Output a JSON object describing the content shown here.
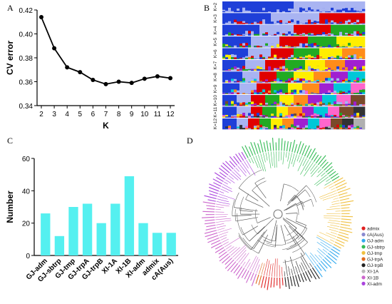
{
  "panel_labels": [
    "A",
    "B",
    "C",
    "D"
  ],
  "chart_data": [
    {
      "type": "line",
      "panel": "A",
      "x": [
        2,
        3,
        4,
        5,
        6,
        7,
        8,
        9,
        10,
        11,
        12
      ],
      "y": [
        0.414,
        0.388,
        0.372,
        0.368,
        0.3615,
        0.358,
        0.36,
        0.359,
        0.3625,
        0.3645,
        0.363
      ],
      "xlabel": "K",
      "ylabel": "CV error",
      "xlim": [
        2,
        12
      ],
      "ylim": [
        0.34,
        0.42
      ],
      "yticks": [
        "0.34",
        "0.36",
        "0.38",
        "0.40",
        "0.42"
      ],
      "xticks": [
        "2",
        "3",
        "4",
        "5",
        "6",
        "7",
        "8",
        "9",
        "10",
        "11",
        "12"
      ],
      "grid": false
    },
    {
      "type": "stacked-bar",
      "panel": "B",
      "rows": [
        "K=2",
        "K=3",
        "K=4",
        "K=5",
        "K=6",
        "K=7",
        "K=8",
        "K=9",
        "K=10",
        "K=11",
        "K=12"
      ],
      "colors": [
        "#1f3fd8",
        "#a9b4f2",
        "#e00000",
        "#22aa22",
        "#ffee00",
        "#ff8c1a",
        "#a020d0",
        "#00c8d8",
        "#ff66cc",
        "#7a4a2a",
        "#333333",
        "#b0b0b0"
      ]
    },
    {
      "type": "bar",
      "panel": "C",
      "categories": [
        "GJ-adm",
        "GJ-sbtrp",
        "GJ-tmp",
        "GJ-trpA",
        "GJ-trpB",
        "XI-1A",
        "XI-1B",
        "XI-adm",
        "admix",
        "cA(Aus)"
      ],
      "values": [
        26,
        12,
        30,
        32,
        20,
        32,
        49,
        20,
        14,
        14
      ],
      "ylabel": "Number",
      "ylim": [
        0,
        60
      ],
      "yticks": [
        "0",
        "20",
        "40",
        "60"
      ],
      "bar_color": "#55f0f0"
    },
    {
      "type": "tree",
      "panel": "D",
      "legend_position": "right",
      "legend": [
        {
          "name": "admix",
          "color": "#e02020"
        },
        {
          "name": "cA(Aus)",
          "color": "#8a8ad0"
        },
        {
          "name": "GJ-adm",
          "color": "#33aaee"
        },
        {
          "name": "GJ-sbtrp",
          "color": "#33bb55"
        },
        {
          "name": "GJ-tmp",
          "color": "#f0c040"
        },
        {
          "name": "GJ-trpA",
          "color": "#e06a20"
        },
        {
          "name": "GJ-trpB",
          "color": "#222222"
        },
        {
          "name": "XI-1A",
          "color": "#bbbbbb"
        },
        {
          "name": "XI-1B",
          "color": "#cc66cc"
        },
        {
          "name": "XI-adm",
          "color": "#aa44dd"
        }
      ]
    }
  ]
}
